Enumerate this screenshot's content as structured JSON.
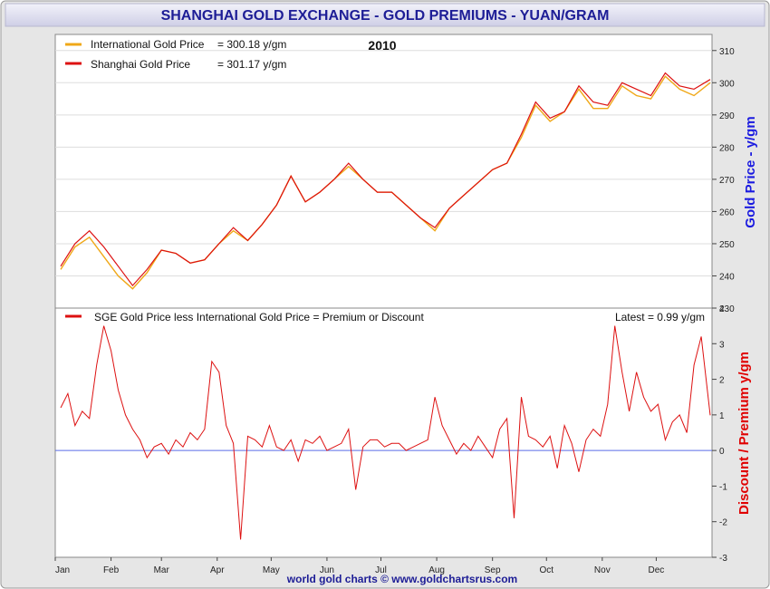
{
  "header": {
    "title": "SHANGHAI GOLD EXCHANGE - GOLD PREMIUMS - YUAN/GRAM"
  },
  "footer": {
    "credit": "world gold charts © www.goldchartsrus.com"
  },
  "colors": {
    "frame_fill": "#e6e6e6",
    "title_bg": "#d8d8ec",
    "title_text": "#1d1d96",
    "intl_series": "#f0a818",
    "sge_series": "#dd1111",
    "zero_line": "#5a6ee8",
    "left_axis_label": "#1a1ae0",
    "right_axis_label": "#e00000"
  },
  "chart_data": [
    {
      "type": "line",
      "title": "2010",
      "ylabel": "Gold Price - y/gm",
      "ylim": [
        230,
        315
      ],
      "y_ticks": [
        230,
        240,
        250,
        260,
        270,
        280,
        290,
        300,
        310
      ],
      "y_tick_labels": [
        "230",
        "240",
        "250",
        "260",
        "270",
        "280",
        "290",
        "300",
        "310"
      ],
      "x_ticks": [
        "Jan",
        "Feb",
        "Mar",
        "Apr",
        "May",
        "Jun",
        "Jul",
        "Aug",
        "Sep",
        "Oct",
        "Nov",
        "Dec"
      ],
      "legend": [
        {
          "label": "International Gold Price",
          "text": "= 300.18 y/gm"
        },
        {
          "label": "Shanghai Gold Price",
          "text": "= 301.17 y/gm"
        }
      ],
      "legend_position": "top-left",
      "series": [
        {
          "name": "International Gold Price",
          "x": [
            "2010-01-04",
            "2010-01-12",
            "2010-01-20",
            "2010-01-28",
            "2010-02-05",
            "2010-02-13",
            "2010-02-21",
            "2010-03-01",
            "2010-03-09",
            "2010-03-17",
            "2010-03-25",
            "2010-04-02",
            "2010-04-10",
            "2010-04-18",
            "2010-04-26",
            "2010-05-04",
            "2010-05-12",
            "2010-05-20",
            "2010-05-28",
            "2010-06-05",
            "2010-06-13",
            "2010-06-21",
            "2010-06-29",
            "2010-07-07",
            "2010-07-15",
            "2010-07-23",
            "2010-07-31",
            "2010-08-08",
            "2010-08-16",
            "2010-08-24",
            "2010-09-01",
            "2010-09-09",
            "2010-09-17",
            "2010-09-25",
            "2010-10-03",
            "2010-10-11",
            "2010-10-19",
            "2010-10-27",
            "2010-11-04",
            "2010-11-12",
            "2010-11-20",
            "2010-11-28",
            "2010-12-06",
            "2010-12-14",
            "2010-12-22",
            "2010-12-31"
          ],
          "values": [
            242,
            249,
            252,
            246,
            240,
            236,
            241,
            248,
            247,
            244,
            245,
            250,
            254,
            251,
            256,
            262,
            271,
            263,
            266,
            270,
            274,
            270,
            266,
            266,
            262,
            258,
            254,
            261,
            265,
            269,
            273,
            275,
            283,
            293,
            288,
            291,
            298,
            292,
            292,
            299,
            296,
            295,
            302,
            298,
            296,
            300
          ]
        },
        {
          "name": "Shanghai Gold Price",
          "x": [
            "2010-01-04",
            "2010-01-12",
            "2010-01-20",
            "2010-01-28",
            "2010-02-05",
            "2010-02-13",
            "2010-02-21",
            "2010-03-01",
            "2010-03-09",
            "2010-03-17",
            "2010-03-25",
            "2010-04-02",
            "2010-04-10",
            "2010-04-18",
            "2010-04-26",
            "2010-05-04",
            "2010-05-12",
            "2010-05-20",
            "2010-05-28",
            "2010-06-05",
            "2010-06-13",
            "2010-06-21",
            "2010-06-29",
            "2010-07-07",
            "2010-07-15",
            "2010-07-23",
            "2010-07-31",
            "2010-08-08",
            "2010-08-16",
            "2010-08-24",
            "2010-09-01",
            "2010-09-09",
            "2010-09-17",
            "2010-09-25",
            "2010-10-03",
            "2010-10-11",
            "2010-10-19",
            "2010-10-27",
            "2010-11-04",
            "2010-11-12",
            "2010-11-20",
            "2010-11-28",
            "2010-12-06",
            "2010-12-14",
            "2010-12-22",
            "2010-12-31"
          ],
          "values": [
            243,
            250,
            254,
            249,
            243,
            237,
            242,
            248,
            247,
            244,
            245,
            250,
            255,
            251,
            256,
            262,
            271,
            263,
            266,
            270,
            275,
            270,
            266,
            266,
            262,
            258,
            255,
            261,
            265,
            269,
            273,
            275,
            284,
            294,
            289,
            291,
            299,
            294,
            293,
            300,
            298,
            296,
            303,
            299,
            298,
            301
          ]
        }
      ]
    },
    {
      "type": "line",
      "ylabel": "Discount / Premium y/gm",
      "ylim": [
        -3,
        4
      ],
      "y_ticks": [
        -3,
        -2,
        -1,
        0,
        1,
        2,
        3,
        4
      ],
      "y_tick_labels": [
        "-3",
        "-2",
        "-1",
        "0",
        "1",
        "2",
        "3",
        "4"
      ],
      "x_ticks": [
        "Jan",
        "Feb",
        "Mar",
        "Apr",
        "May",
        "Jun",
        "Jul",
        "Aug",
        "Sep",
        "Oct",
        "Nov",
        "Dec"
      ],
      "legend": [
        {
          "label": "SGE Gold Price less International Gold Price = Premium or Discount"
        }
      ],
      "latest_label": "Latest = 0.99 y/gm",
      "zero_line": 0,
      "series": [
        {
          "name": "SGE Gold Price less International Gold Price = Premium or Discount",
          "x": [
            "2010-01-04",
            "2010-01-08",
            "2010-01-12",
            "2010-01-16",
            "2010-01-20",
            "2010-01-24",
            "2010-01-28",
            "2010-02-01",
            "2010-02-05",
            "2010-02-09",
            "2010-02-13",
            "2010-02-17",
            "2010-02-21",
            "2010-02-25",
            "2010-03-01",
            "2010-03-05",
            "2010-03-09",
            "2010-03-13",
            "2010-03-17",
            "2010-03-21",
            "2010-03-25",
            "2010-03-29",
            "2010-04-02",
            "2010-04-06",
            "2010-04-10",
            "2010-04-14",
            "2010-04-18",
            "2010-04-22",
            "2010-04-26",
            "2010-04-30",
            "2010-05-04",
            "2010-05-08",
            "2010-05-12",
            "2010-05-16",
            "2010-05-20",
            "2010-05-24",
            "2010-05-28",
            "2010-06-01",
            "2010-06-05",
            "2010-06-09",
            "2010-06-13",
            "2010-06-17",
            "2010-06-21",
            "2010-06-25",
            "2010-06-29",
            "2010-07-03",
            "2010-07-07",
            "2010-07-11",
            "2010-07-15",
            "2010-07-19",
            "2010-07-23",
            "2010-07-27",
            "2010-07-31",
            "2010-08-04",
            "2010-08-08",
            "2010-08-12",
            "2010-08-16",
            "2010-08-20",
            "2010-08-24",
            "2010-08-28",
            "2010-09-01",
            "2010-09-05",
            "2010-09-09",
            "2010-09-13",
            "2010-09-17",
            "2010-09-21",
            "2010-09-25",
            "2010-09-29",
            "2010-10-03",
            "2010-10-07",
            "2010-10-11",
            "2010-10-15",
            "2010-10-19",
            "2010-10-23",
            "2010-10-27",
            "2010-10-31",
            "2010-11-04",
            "2010-11-08",
            "2010-11-12",
            "2010-11-16",
            "2010-11-20",
            "2010-11-24",
            "2010-11-28",
            "2010-12-02",
            "2010-12-06",
            "2010-12-10",
            "2010-12-14",
            "2010-12-18",
            "2010-12-22",
            "2010-12-26",
            "2010-12-31"
          ],
          "values": [
            1.2,
            1.6,
            0.7,
            1.1,
            0.9,
            2.4,
            3.5,
            2.8,
            1.7,
            1.0,
            0.6,
            0.3,
            -0.2,
            0.1,
            0.2,
            -0.1,
            0.3,
            0.1,
            0.5,
            0.3,
            0.6,
            2.5,
            2.2,
            0.7,
            0.2,
            -2.5,
            0.4,
            0.3,
            0.1,
            0.7,
            0.1,
            0.0,
            0.3,
            -0.3,
            0.3,
            0.2,
            0.4,
            0.0,
            0.1,
            0.2,
            0.6,
            -1.1,
            0.1,
            0.3,
            0.3,
            0.1,
            0.2,
            0.2,
            0.0,
            0.1,
            0.2,
            0.3,
            1.5,
            0.7,
            0.3,
            -0.1,
            0.2,
            0.0,
            0.4,
            0.1,
            -0.2,
            0.6,
            0.9,
            -1.9,
            1.5,
            0.4,
            0.3,
            0.1,
            0.4,
            -0.5,
            0.7,
            0.2,
            -0.6,
            0.3,
            0.6,
            0.4,
            1.3,
            3.5,
            2.2,
            1.1,
            2.2,
            1.5,
            1.1,
            1.3,
            0.3,
            0.8,
            1.0,
            0.5,
            2.4,
            3.2,
            0.99
          ]
        }
      ]
    }
  ]
}
